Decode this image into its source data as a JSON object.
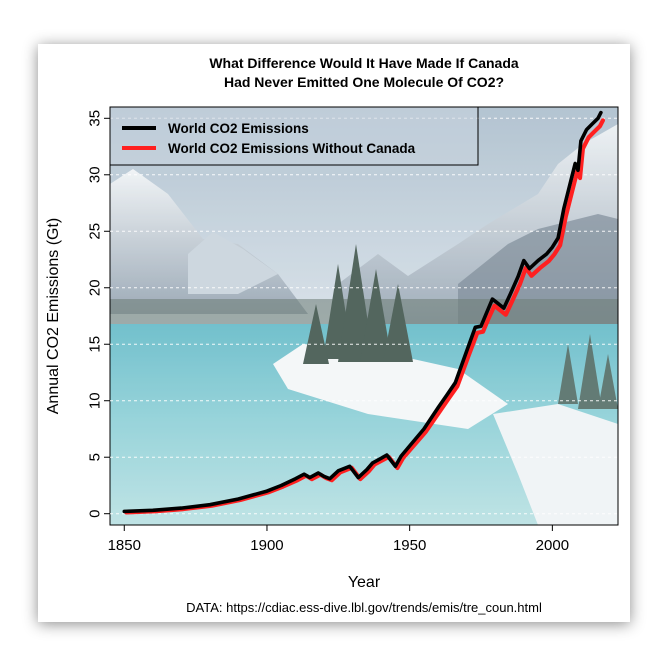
{
  "chart_data": {
    "type": "line",
    "title_line1": "What Difference Would It Have Made If Canada",
    "title_line2": "Had Never Emitted One Molecule Of CO2?",
    "xlabel": "Year",
    "ylabel": "Annual CO2 Emissions (Gt)",
    "source": "DATA: https://cdiac.ess-dive.lbl.gov/trends/emis/tre_coun.html",
    "xlim": [
      1845,
      2023
    ],
    "ylim": [
      -1,
      36
    ],
    "x_ticks": [
      1850,
      1900,
      1950,
      2000
    ],
    "y_ticks": [
      0,
      5,
      10,
      15,
      20,
      25,
      30,
      35
    ],
    "grid": "horizontal dashed",
    "legend_position": "top-left",
    "background": "photo of snowy mountain lake with island of pine trees",
    "series": [
      {
        "name": "World CO2 Emissions",
        "color": "#000000",
        "x": [
          1850,
          1860,
          1870,
          1880,
          1890,
          1900,
          1905,
          1910,
          1913,
          1915,
          1918,
          1920,
          1922,
          1925,
          1929,
          1932,
          1935,
          1937,
          1940,
          1942,
          1945,
          1947,
          1950,
          1955,
          1960,
          1963,
          1966,
          1970,
          1973,
          1975,
          1977,
          1979,
          1980,
          1983,
          1985,
          1988,
          1990,
          1992,
          1995,
          1998,
          2000,
          2002,
          2004,
          2006,
          2008,
          2009,
          2010,
          2012,
          2014,
          2016,
          2017
        ],
        "values": [
          0.2,
          0.3,
          0.5,
          0.8,
          1.3,
          2.0,
          2.5,
          3.1,
          3.5,
          3.2,
          3.6,
          3.3,
          3.1,
          3.8,
          4.2,
          3.2,
          3.9,
          4.5,
          4.9,
          5.2,
          4.2,
          5.1,
          6.0,
          7.5,
          9.4,
          10.5,
          11.6,
          14.4,
          16.5,
          16.6,
          17.8,
          19.0,
          18.8,
          18.2,
          19.3,
          21.0,
          22.4,
          21.7,
          22.4,
          23.0,
          23.6,
          24.4,
          27.0,
          29.0,
          31.0,
          30.4,
          33.0,
          34.0,
          34.5,
          35.0,
          35.5
        ]
      },
      {
        "name": "World CO2 Emissions Without Canada",
        "color": "#ff2020",
        "x": [
          1850,
          1860,
          1870,
          1880,
          1890,
          1900,
          1905,
          1910,
          1913,
          1915,
          1918,
          1920,
          1922,
          1925,
          1929,
          1932,
          1935,
          1937,
          1940,
          1942,
          1945,
          1947,
          1950,
          1955,
          1960,
          1963,
          1966,
          1970,
          1973,
          1975,
          1977,
          1979,
          1980,
          1983,
          1985,
          1988,
          1990,
          1992,
          1995,
          1998,
          2000,
          2002,
          2004,
          2006,
          2008,
          2009,
          2010,
          2012,
          2014,
          2016,
          2017
        ],
        "values": [
          0.2,
          0.3,
          0.5,
          0.8,
          1.3,
          2.0,
          2.5,
          3.05,
          3.45,
          3.15,
          3.55,
          3.25,
          3.05,
          3.75,
          4.15,
          3.15,
          3.85,
          4.45,
          4.85,
          5.12,
          4.13,
          5.02,
          5.9,
          7.36,
          9.2,
          10.3,
          11.37,
          14.1,
          16.1,
          16.2,
          17.4,
          18.5,
          18.3,
          17.7,
          18.8,
          20.45,
          21.85,
          21.15,
          21.85,
          22.45,
          23.05,
          23.85,
          26.4,
          28.4,
          30.4,
          29.8,
          32.4,
          33.4,
          33.9,
          34.4,
          34.9
        ]
      }
    ]
  }
}
